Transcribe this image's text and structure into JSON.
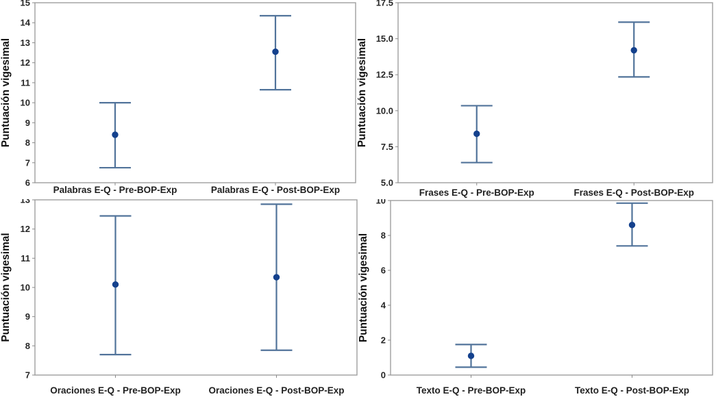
{
  "figure": {
    "description": "Four interval plots of vigesimal scores before and after intervention",
    "ylabel_shared": "Puntuación vigesimal"
  },
  "colors": {
    "interval_line": "#51739A",
    "point_fill": "#14418D",
    "frame": "#9E9E9E",
    "tick": "#8A8A8A",
    "text": "#262626",
    "background": "#FFFFFF"
  },
  "chart_data": [
    {
      "type": "scatter",
      "subtype": "interval-plot",
      "title": "",
      "xlabel": "",
      "ylabel": "Puntuación vigesimal",
      "ylim": [
        6,
        15
      ],
      "ytick_step": 1,
      "ytick_decimals": 0,
      "grid": false,
      "legend": null,
      "categories": [
        "Palabras E-Q - Pre-BOP-Exp",
        "Palabras E-Q - Post-BOP-Exp"
      ],
      "points": [
        {
          "mean": 8.4,
          "ci_low": 6.75,
          "ci_high": 10.0
        },
        {
          "mean": 12.55,
          "ci_low": 10.65,
          "ci_high": 14.35
        }
      ]
    },
    {
      "type": "scatter",
      "subtype": "interval-plot",
      "title": "",
      "xlabel": "",
      "ylabel": "Puntuación vigesimal",
      "ylim": [
        5.0,
        17.5
      ],
      "ytick_step": 2.5,
      "ytick_decimals": 1,
      "grid": false,
      "legend": null,
      "categories": [
        "Frases E-Q - Pre-BOP-Exp",
        "Frases E-Q - Post-BOP-Exp"
      ],
      "points": [
        {
          "mean": 8.4,
          "ci_low": 6.4,
          "ci_high": 10.35
        },
        {
          "mean": 14.2,
          "ci_low": 12.35,
          "ci_high": 16.15
        }
      ]
    },
    {
      "type": "scatter",
      "subtype": "interval-plot",
      "title": "",
      "xlabel": "",
      "ylabel": "Puntuación vigesimal",
      "ylim": [
        7,
        13
      ],
      "ytick_step": 1,
      "ytick_decimals": 0,
      "grid": false,
      "legend": null,
      "categories": [
        "Oraciones E-Q - Pre-BOP-Exp",
        "Oraciones E-Q - Post-BOP-Exp"
      ],
      "points": [
        {
          "mean": 10.1,
          "ci_low": 7.7,
          "ci_high": 12.45
        },
        {
          "mean": 10.35,
          "ci_low": 7.85,
          "ci_high": 12.85
        }
      ]
    },
    {
      "type": "scatter",
      "subtype": "interval-plot",
      "title": "",
      "xlabel": "",
      "ylabel": "Puntuación vigesimal",
      "ylim": [
        0,
        10
      ],
      "ytick_step": 2,
      "ytick_decimals": 0,
      "grid": false,
      "legend": null,
      "categories": [
        "Texto E-Q - Pre-BOP-Exp",
        "Texto E-Q - Post-BOP-Exp"
      ],
      "points": [
        {
          "mean": 1.1,
          "ci_low": 0.45,
          "ci_high": 1.75
        },
        {
          "mean": 8.6,
          "ci_low": 7.4,
          "ci_high": 9.85
        }
      ]
    }
  ]
}
